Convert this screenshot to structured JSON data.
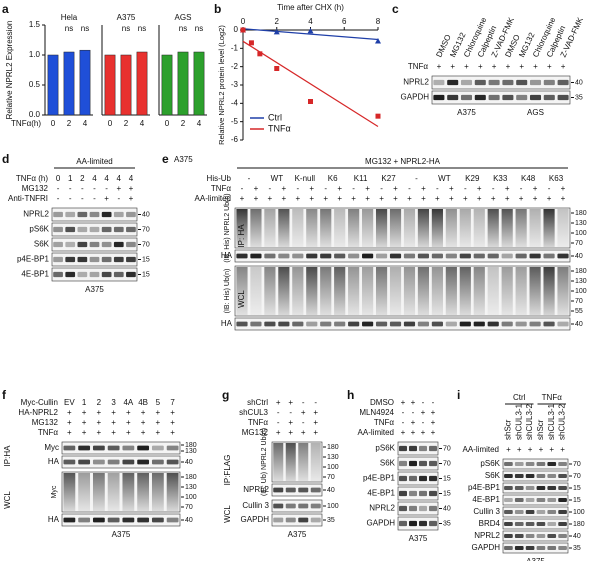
{
  "figure_labels": [
    "a",
    "b"
  ],
  "chart_data": [
    {
      "type": "bar",
      "title": "Hela",
      "ylabel": "Relative NPRL2 Expression",
      "xlabel": "TNFα(h)",
      "categories": [
        "0",
        "2",
        "4"
      ],
      "values": [
        1.0,
        1.05,
        1.08
      ],
      "color": "#1f4fd8",
      "ylim": [
        0,
        1.5
      ],
      "yticks": [
        {
          "value": 0,
          "label": "0.0"
        },
        {
          "value": 0.5,
          "label": "0.5"
        },
        {
          "value": 1,
          "label": "1.0"
        },
        {
          "value": 1.5,
          "label": "1.5"
        }
      ],
      "annotations": [
        "ns",
        "ns"
      ]
    },
    {
      "type": "bar",
      "title": "A375",
      "categories": [
        "0",
        "2",
        "4"
      ],
      "values": [
        1.0,
        1.0,
        1.05
      ],
      "color": "#e8312f",
      "ylim": [
        0,
        1.5
      ],
      "annotations": [
        "ns",
        "ns"
      ]
    },
    {
      "type": "bar",
      "title": "AGS",
      "categories": [
        "0",
        "2",
        "4"
      ],
      "values": [
        1.0,
        1.05,
        1.05
      ],
      "color": "#2ca02c",
      "ylim": [
        0,
        1.5
      ],
      "annotations": [
        "ns",
        "ns"
      ]
    },
    {
      "type": "line",
      "xlabel": "Time after CHX (h)",
      "ylabel": "Relative NPRL2 protein level (Log2)",
      "xlim": [
        0,
        8
      ],
      "xticks": [
        0,
        2,
        4,
        6,
        8
      ],
      "ylim": [
        -6,
        0
      ],
      "yticks": [
        0,
        -1,
        -2,
        -3,
        -4,
        -5,
        -6
      ],
      "legend": "lower left",
      "series": [
        {
          "name": "Ctrl",
          "color": "#1f3fa8",
          "marker": "triangle",
          "x": [
            0,
            2,
            4,
            8
          ],
          "values": [
            0,
            -0.1,
            -0.05,
            -0.6
          ]
        },
        {
          "name": "TNFα",
          "color": "#d62728",
          "marker": "square",
          "x": [
            0,
            0.5,
            1,
            2,
            4,
            8
          ],
          "values": [
            0,
            -0.7,
            -1.3,
            -2.1,
            -3.9,
            -4.7
          ]
        }
      ]
    }
  ],
  "blots": [
    {
      "letter": "c",
      "lane_labels": [
        "DMSO",
        "MG132",
        "Chloroquine",
        "Calpeptin",
        "Z-VAD-FMK",
        "DMSO",
        "MG132",
        "Chloroquine",
        "Calpeptin",
        "Z-VAD-FMK"
      ],
      "conditions": [
        {
          "label": "TNFα",
          "marks": [
            "+",
            "+",
            "+",
            "+",
            "+",
            "+",
            "+",
            "+",
            "+",
            "+"
          ]
        }
      ],
      "sections": [
        {
          "blots": [
            {
              "label": "NPRL2",
              "mw": [
                "40"
              ]
            },
            {
              "label": "GAPDH",
              "mw": [
                "35"
              ]
            }
          ]
        }
      ],
      "cell_lines": [
        "A375",
        "AGS"
      ]
    },
    {
      "letter": "d",
      "groups": [
        "AA-limited"
      ],
      "conditions": [
        {
          "label": "TNFα (h)",
          "marks": [
            "0",
            "1",
            "2",
            "4",
            "4",
            "4",
            "4"
          ]
        },
        {
          "label": "MG132",
          "marks": [
            "-",
            "-",
            "-",
            "-",
            "-",
            "+",
            "+"
          ]
        },
        {
          "label": "Anti-TNFRI",
          "marks": [
            "-",
            "-",
            "-",
            "-",
            "+",
            "-",
            "+"
          ]
        }
      ],
      "sections": [
        {
          "blots": [
            {
              "label": "NPRL2",
              "mw": [
                "40"
              ]
            },
            {
              "label": "pS6K",
              "mw": [
                "70"
              ]
            },
            {
              "label": "S6K",
              "mw": [
                "70"
              ]
            },
            {
              "label": "p4E-BP1",
              "mw": [
                "15"
              ]
            },
            {
              "label": "4E-BP1",
              "mw": [
                "15"
              ]
            }
          ]
        }
      ],
      "cell_lines": [
        "A375"
      ]
    },
    {
      "letter": "e",
      "top_label": "A375",
      "groups": [
        "MG132 + NPRL2-HA"
      ],
      "conditions": [
        {
          "label": "His-Ub",
          "marks": [
            "-",
            "WT",
            "K-null",
            "K6",
            "K11",
            "K27",
            "-",
            "WT",
            "K29",
            "K33",
            "K48",
            "K63"
          ]
        },
        {
          "label": "TNFα",
          "marks": [
            "-",
            "+",
            "-",
            "+",
            "-",
            "+",
            "-",
            "+",
            "-",
            "+",
            "-",
            "+",
            "-",
            "+",
            "-",
            "+",
            "-",
            "+",
            "-",
            "+",
            "-",
            "+",
            "-",
            "+"
          ]
        },
        {
          "label": "AA-limited",
          "marks": [
            "+",
            "+",
            "+",
            "+",
            "+",
            "+",
            "+",
            "+",
            "+",
            "+",
            "+",
            "+",
            "+",
            "+",
            "+",
            "+",
            "+",
            "+",
            "+",
            "+",
            "+",
            "+",
            "+",
            "+"
          ]
        }
      ],
      "sections": [
        {
          "label": "IP: HA",
          "blots": [
            {
              "label": "(IB: His) NPRL2 Ub(n)",
              "mw": [
                "180",
                "130",
                "100",
                "70"
              ]
            },
            {
              "label": "HA",
              "mw": [
                "40"
              ]
            }
          ]
        },
        {
          "label": "WCL",
          "blots": [
            {
              "label": "(IB: His) Ub(n)",
              "mw": [
                "180",
                "130",
                "100",
                "70",
                "55"
              ]
            },
            {
              "label": "HA",
              "mw": [
                "40"
              ]
            }
          ]
        }
      ]
    },
    {
      "letter": "f",
      "conditions": [
        {
          "label": "Myc-Cullin",
          "marks": [
            "EV",
            "1",
            "2",
            "3",
            "4A",
            "4B",
            "5",
            "7"
          ]
        },
        {
          "label": "HA-NPRL2",
          "marks": [
            "+",
            "+",
            "+",
            "+",
            "+",
            "+",
            "+",
            "+"
          ]
        },
        {
          "label": "MG132",
          "marks": [
            "+",
            "+",
            "+",
            "+",
            "+",
            "+",
            "+",
            "+"
          ]
        },
        {
          "label": "TNFα",
          "marks": [
            "+",
            "+",
            "+",
            "+",
            "+",
            "+",
            "+",
            "+"
          ]
        }
      ],
      "sections": [
        {
          "label": "IP:HA",
          "blots": [
            {
              "label": "Myc",
              "mw": [
                "180",
                "130"
              ]
            },
            {
              "label": "HA",
              "mw": [
                "40"
              ]
            }
          ]
        },
        {
          "label": "WCL",
          "blots": [
            {
              "label": "Myc",
              "mw": [
                "180",
                "130",
                "100",
                "70"
              ]
            },
            {
              "label": "HA",
              "mw": [
                "40"
              ]
            }
          ]
        }
      ],
      "cell_lines": [
        "A375"
      ]
    },
    {
      "letter": "g",
      "conditions": [
        {
          "label": "shCtrl",
          "marks": [
            "+",
            "+",
            "-",
            "-"
          ]
        },
        {
          "label": "shCUL3",
          "marks": [
            "-",
            "-",
            "+",
            "+"
          ]
        },
        {
          "label": "TNFα",
          "marks": [
            "-",
            "+",
            "-",
            "+"
          ]
        },
        {
          "label": "MG132",
          "marks": [
            "+",
            "+",
            "+",
            "+"
          ]
        }
      ],
      "sections": [
        {
          "label": "IP:FLAG",
          "blots": [
            {
              "label": "(IB: Ub) NPRL2 Ub(n)",
              "mw": [
                "180",
                "130",
                "100",
                "70"
              ]
            },
            {
              "label": "NPRL2",
              "mw": [
                "40"
              ]
            }
          ]
        },
        {
          "label": "WCL",
          "blots": [
            {
              "label": "Cullin 3",
              "mw": [
                "100"
              ]
            },
            {
              "label": "GAPDH",
              "mw": [
                "35"
              ]
            }
          ]
        }
      ],
      "cell_lines": [
        "A375"
      ]
    },
    {
      "letter": "h",
      "conditions": [
        {
          "label": "DMSO",
          "marks": [
            "+",
            "+",
            "-",
            "-"
          ]
        },
        {
          "label": "MLN4924",
          "marks": [
            "-",
            "-",
            "+",
            "+"
          ]
        },
        {
          "label": "TNFα",
          "marks": [
            "-",
            "+",
            "-",
            "+"
          ]
        },
        {
          "label": "AA-limited",
          "marks": [
            "+",
            "+",
            "+",
            "+"
          ]
        }
      ],
      "sections": [
        {
          "blots": [
            {
              "label": "pS6K",
              "mw": [
                "70"
              ]
            },
            {
              "label": "S6K",
              "mw": [
                "70"
              ]
            },
            {
              "label": "p4E-BP1",
              "mw": [
                "15"
              ]
            },
            {
              "label": "4E-BP1",
              "mw": [
                "15"
              ]
            },
            {
              "label": "NPRL2",
              "mw": [
                "40"
              ]
            },
            {
              "label": "GAPDH",
              "mw": [
                "35"
              ]
            }
          ]
        }
      ],
      "cell_lines": [
        "A375"
      ]
    },
    {
      "letter": "i",
      "groups": [
        "Ctrl",
        "TNFα"
      ],
      "lane_labels": [
        "shScr",
        "shCUL3-1",
        "shCUL3-2",
        "shScr",
        "shCUL3-1",
        "shCUL3-2"
      ],
      "conditions": [
        {
          "label": "AA-limited",
          "marks": [
            "+",
            "+",
            "+",
            "+",
            "+",
            "+"
          ]
        }
      ],
      "sections": [
        {
          "blots": [
            {
              "label": "pS6K",
              "mw": [
                "70"
              ]
            },
            {
              "label": "S6K",
              "mw": [
                "70"
              ]
            },
            {
              "label": "p4E-BP1",
              "mw": [
                "15"
              ]
            },
            {
              "label": "4E-BP1",
              "mw": [
                "15"
              ]
            },
            {
              "label": "Cullin 3",
              "mw": [
                "100"
              ]
            },
            {
              "label": "BRD4",
              "mw": [
                "180"
              ]
            },
            {
              "label": "NPRL2",
              "mw": [
                "40"
              ]
            },
            {
              "label": "GAPDH",
              "mw": [
                "35"
              ]
            }
          ]
        }
      ],
      "cell_lines": [
        "A375"
      ]
    }
  ]
}
